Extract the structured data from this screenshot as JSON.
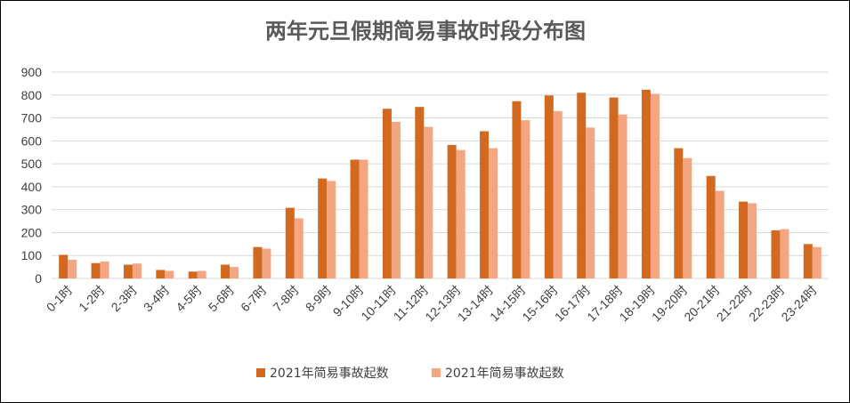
{
  "colors": {
    "series_1": "#D2691E",
    "series_2": "#F4A582",
    "grid": "#D9D9D9",
    "text": "#404040",
    "title": "#595959"
  },
  "chart_data": {
    "type": "bar",
    "title": "两年元旦假期简易事故时段分布图",
    "xlabel": "",
    "ylabel": "",
    "ylim": [
      0,
      900
    ],
    "yticks": [
      0,
      100,
      200,
      300,
      400,
      500,
      600,
      700,
      800,
      900
    ],
    "grid": true,
    "legend_position": "bottom",
    "categories": [
      "0-1时",
      "1-2时",
      "2-3时",
      "3-4时",
      "4-5时",
      "5-6时",
      "6-7时",
      "7-8时",
      "8-9时",
      "9-10时",
      "10-11时",
      "11-12时",
      "12-13时",
      "13-14时",
      "14-15时",
      "15-16时",
      "16-17时",
      "17-18时",
      "18-19时",
      "19-20时",
      "20-21时",
      "21-22时",
      "22-23时",
      "23-24时"
    ],
    "series": [
      {
        "name": "2021年简易事故起数",
        "values": [
          103,
          67,
          60,
          37,
          30,
          60,
          137,
          308,
          436,
          518,
          740,
          748,
          582,
          642,
          773,
          798,
          810,
          789,
          823,
          568,
          447,
          335,
          210,
          150
        ]
      },
      {
        "name": "2021年简易事故起数",
        "values": [
          82,
          74,
          65,
          33,
          33,
          50,
          130,
          262,
          425,
          518,
          683,
          661,
          560,
          568,
          690,
          730,
          658,
          715,
          805,
          525,
          382,
          328,
          215,
          137
        ]
      }
    ]
  }
}
